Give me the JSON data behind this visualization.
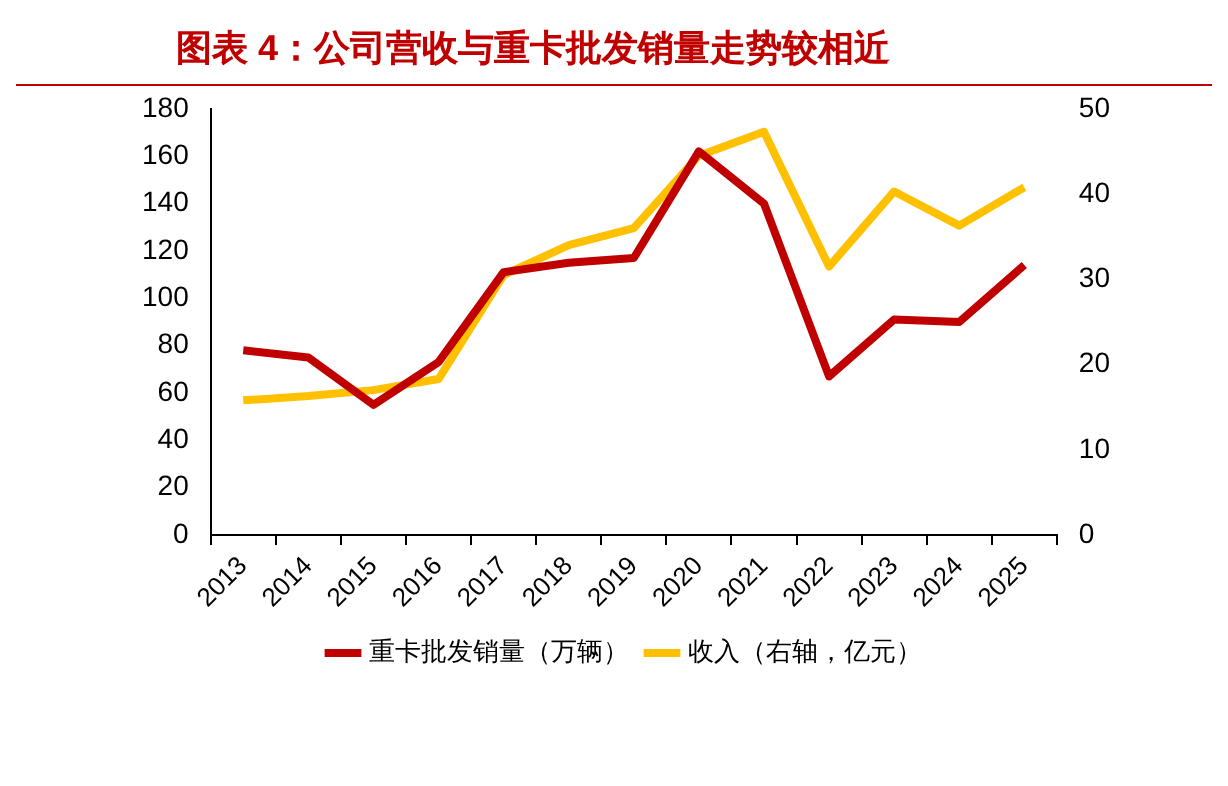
{
  "chart_data": {
    "type": "line",
    "title": "图表 4：公司营收与重卡批发销量走势较相近",
    "categories": [
      "2013",
      "2014",
      "2015",
      "2016",
      "2017",
      "2018",
      "2019",
      "2020",
      "2021",
      "2022",
      "2023",
      "2024",
      "2025"
    ],
    "series": [
      {
        "name": "重卡批发销量（万辆）",
        "color": "#c00000",
        "values": [
          78,
          75,
          55,
          73,
          111,
          115,
          117,
          162,
          140,
          67,
          91,
          90,
          114
        ]
      },
      {
        "name": "收入（右轴，亿元）",
        "color": "#ffc000",
        "axis": "y2",
        "values": [
          15.8,
          16.3,
          17,
          18.3,
          30.5,
          34,
          36,
          44.5,
          47.3,
          31.5,
          40.3,
          36.3,
          40.8
        ]
      }
    ],
    "ylim": [
      0,
      180
    ],
    "yticks": [
      0,
      20,
      40,
      60,
      80,
      100,
      120,
      140,
      160,
      180
    ],
    "y2lim": [
      0,
      50
    ],
    "y2ticks": [
      0,
      10,
      20,
      30,
      40,
      50
    ],
    "grid": false,
    "legend": "bottom",
    "marker": "none",
    "line_style": "solid"
  }
}
